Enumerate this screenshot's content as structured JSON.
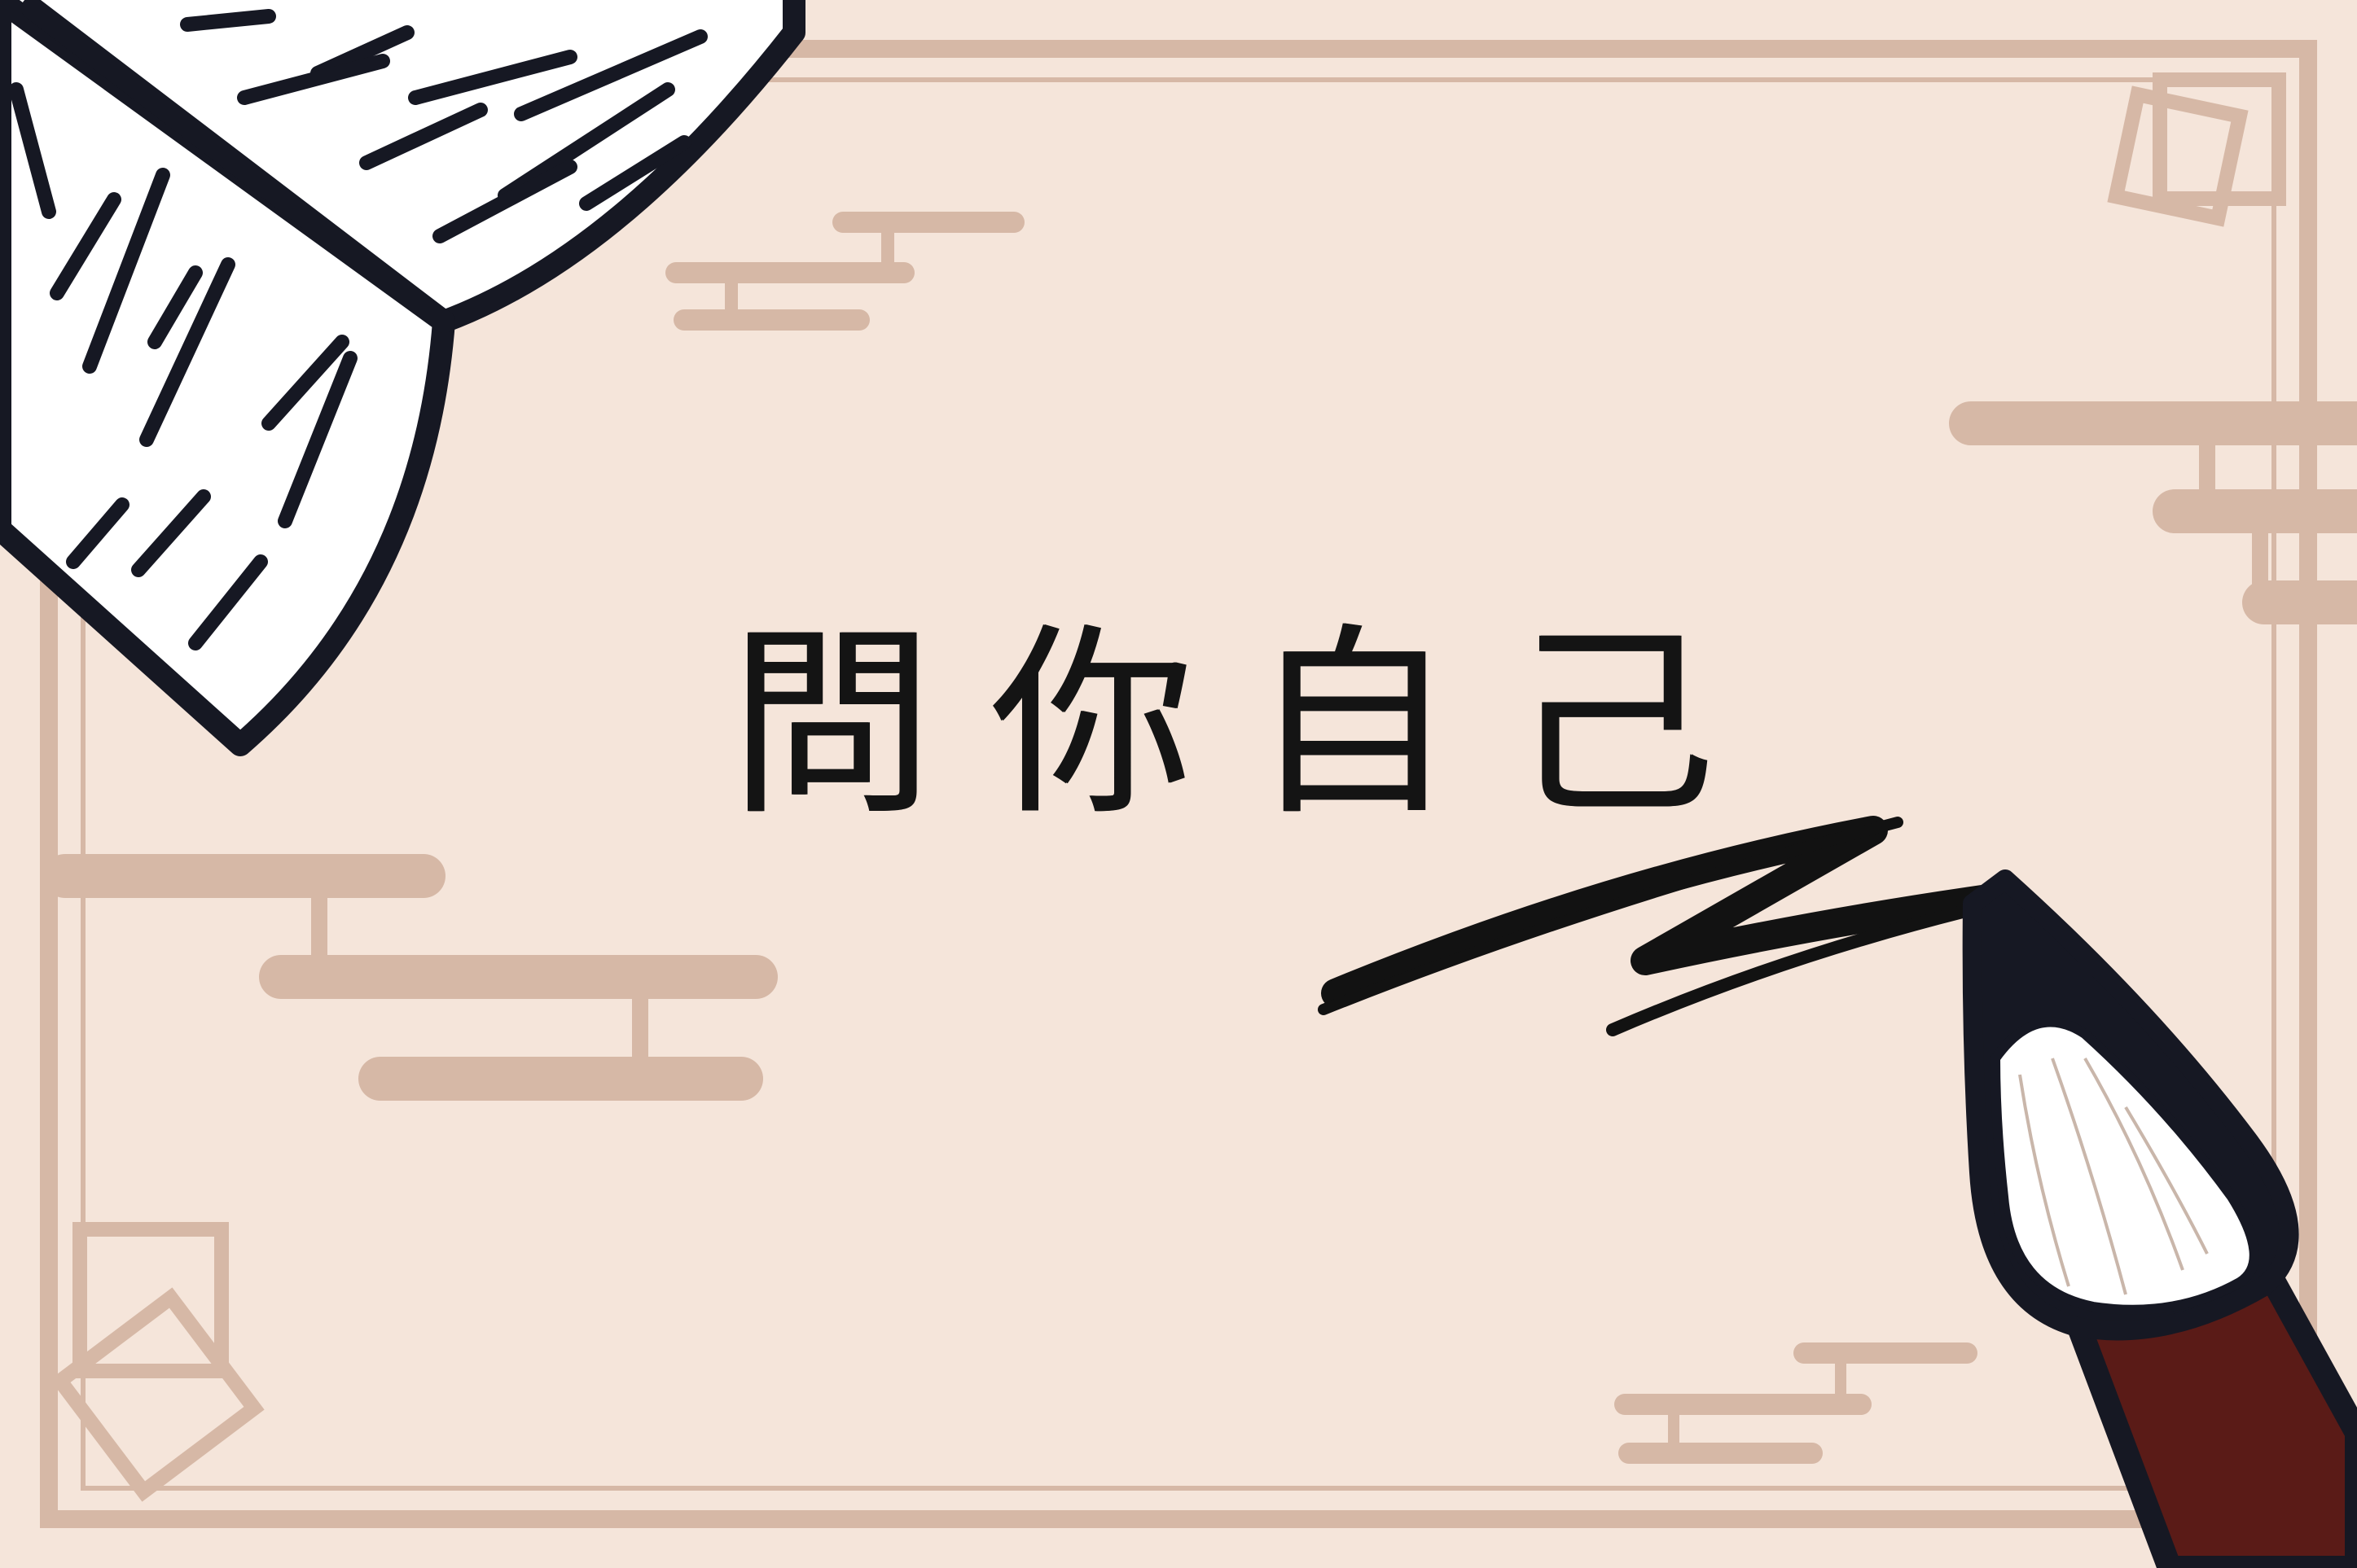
{
  "title": "問你自己",
  "colors": {
    "background": "#f5e5da",
    "frame": "#d6b8a6",
    "ink": "#161823",
    "paper": "#ffffff",
    "brush_handle": "#5a1b17",
    "stroke": "#121212"
  },
  "icons": [
    "book-icon",
    "calligraphy-brush-icon",
    "brush-stroke",
    "cloud-ornament",
    "square-ornament"
  ]
}
